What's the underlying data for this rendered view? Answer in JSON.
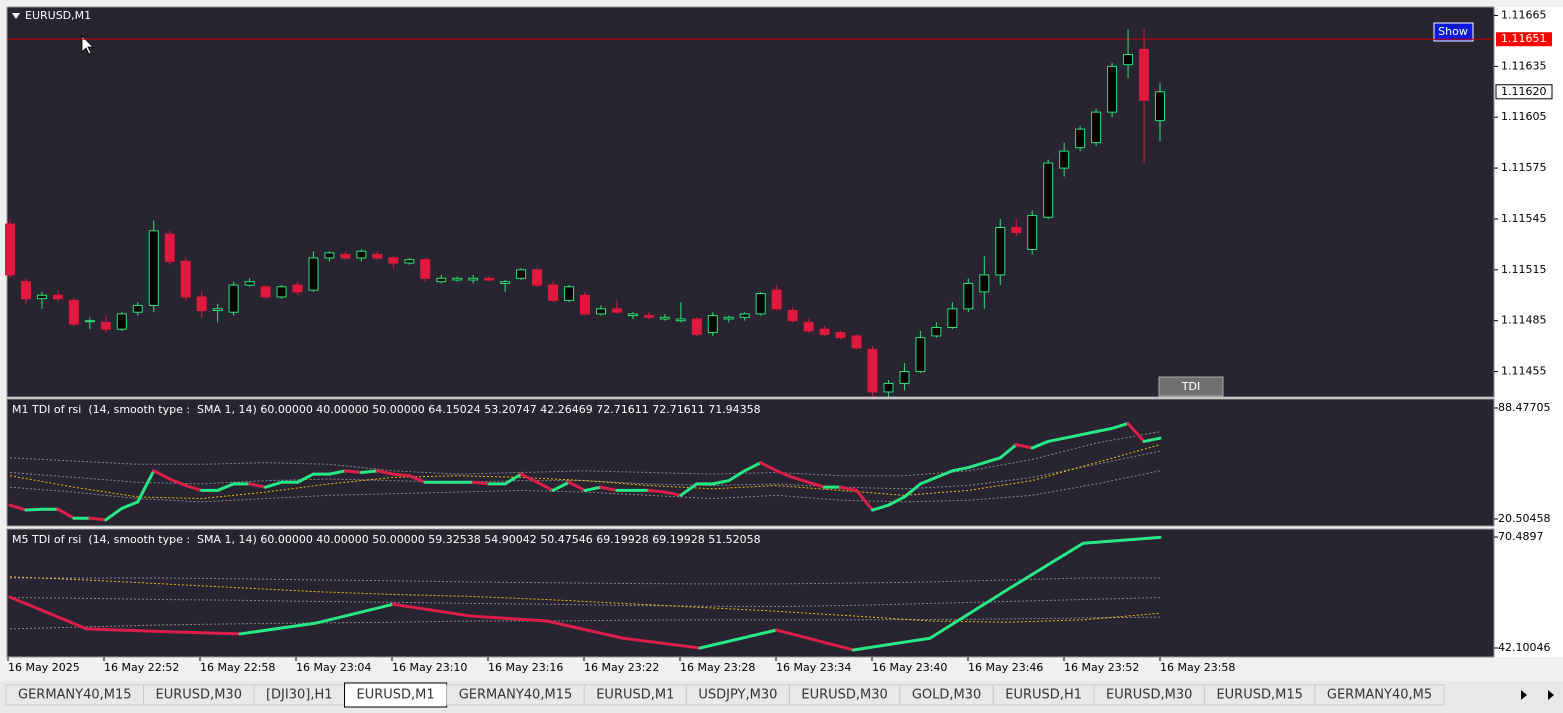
{
  "symbol": "EURUSD,M1",
  "buttons": {
    "show": "Show",
    "tdi": "TDI"
  },
  "price_chart": {
    "ylim": [
      1.1144,
      1.1167
    ],
    "yticks": [
      1.11665,
      1.11635,
      1.11605,
      1.11575,
      1.11545,
      1.11515,
      1.11485,
      1.11455
    ],
    "alert_line": 1.11651,
    "current_price": {
      "value": 1.1162,
      "label": "1.11620"
    },
    "bull_color": "#2ee07a",
    "bear_color": "#e0193f",
    "candles": [
      {
        "open": 1.11542,
        "high": 1.11545,
        "low": 1.1151,
        "close": 1.11512
      },
      {
        "open": 1.11508,
        "high": 1.1151,
        "low": 1.11495,
        "close": 1.11498
      },
      {
        "open": 1.11498,
        "high": 1.11502,
        "low": 1.11492,
        "close": 1.115
      },
      {
        "open": 1.115,
        "high": 1.11503,
        "low": 1.11496,
        "close": 1.11498
      },
      {
        "open": 1.11497,
        "high": 1.11498,
        "low": 1.11482,
        "close": 1.11483
      },
      {
        "open": 1.11485,
        "high": 1.11487,
        "low": 1.1148,
        "close": 1.11485
      },
      {
        "open": 1.11484,
        "high": 1.11488,
        "low": 1.11478,
        "close": 1.1148
      },
      {
        "open": 1.1148,
        "high": 1.1149,
        "low": 1.11479,
        "close": 1.11489
      },
      {
        "open": 1.1149,
        "high": 1.11496,
        "low": 1.11488,
        "close": 1.11494
      },
      {
        "open": 1.11494,
        "high": 1.11544,
        "low": 1.1149,
        "close": 1.11538
      },
      {
        "open": 1.11536,
        "high": 1.11538,
        "low": 1.11518,
        "close": 1.1152
      },
      {
        "open": 1.1152,
        "high": 1.11522,
        "low": 1.11497,
        "close": 1.11499
      },
      {
        "open": 1.11499,
        "high": 1.11502,
        "low": 1.11487,
        "close": 1.11491
      },
      {
        "open": 1.11491,
        "high": 1.11495,
        "low": 1.11484,
        "close": 1.11492
      },
      {
        "open": 1.1149,
        "high": 1.11508,
        "low": 1.11488,
        "close": 1.11506
      },
      {
        "open": 1.11506,
        "high": 1.1151,
        "low": 1.11505,
        "close": 1.11508
      },
      {
        "open": 1.11505,
        "high": 1.11506,
        "low": 1.11498,
        "close": 1.11499
      },
      {
        "open": 1.11499,
        "high": 1.11506,
        "low": 1.11498,
        "close": 1.11505
      },
      {
        "open": 1.11506,
        "high": 1.11508,
        "low": 1.115,
        "close": 1.11502
      },
      {
        "open": 1.11503,
        "high": 1.11526,
        "low": 1.11502,
        "close": 1.11522
      },
      {
        "open": 1.11522,
        "high": 1.11526,
        "low": 1.1152,
        "close": 1.11525
      },
      {
        "open": 1.11524,
        "high": 1.11526,
        "low": 1.11521,
        "close": 1.11522
      },
      {
        "open": 1.11522,
        "high": 1.11527,
        "low": 1.1152,
        "close": 1.11526
      },
      {
        "open": 1.11524,
        "high": 1.11526,
        "low": 1.11521,
        "close": 1.11522
      },
      {
        "open": 1.11522,
        "high": 1.11523,
        "low": 1.11516,
        "close": 1.11519
      },
      {
        "open": 1.11519,
        "high": 1.11522,
        "low": 1.11518,
        "close": 1.11521
      },
      {
        "open": 1.11521,
        "high": 1.11522,
        "low": 1.11508,
        "close": 1.1151
      },
      {
        "open": 1.11508,
        "high": 1.11512,
        "low": 1.11507,
        "close": 1.1151
      },
      {
        "open": 1.11509,
        "high": 1.11511,
        "low": 1.11508,
        "close": 1.1151
      },
      {
        "open": 1.11509,
        "high": 1.11512,
        "low": 1.11507,
        "close": 1.1151
      },
      {
        "open": 1.1151,
        "high": 1.11511,
        "low": 1.11508,
        "close": 1.11509
      },
      {
        "open": 1.11507,
        "high": 1.11509,
        "low": 1.11502,
        "close": 1.11508
      },
      {
        "open": 1.1151,
        "high": 1.11516,
        "low": 1.11509,
        "close": 1.11515
      },
      {
        "open": 1.11515,
        "high": 1.11516,
        "low": 1.11505,
        "close": 1.11506
      },
      {
        "open": 1.11506,
        "high": 1.11508,
        "low": 1.11496,
        "close": 1.11497
      },
      {
        "open": 1.11497,
        "high": 1.11506,
        "low": 1.11496,
        "close": 1.11505
      },
      {
        "open": 1.115,
        "high": 1.11502,
        "low": 1.11488,
        "close": 1.11489
      },
      {
        "open": 1.11489,
        "high": 1.11494,
        "low": 1.11488,
        "close": 1.11492
      },
      {
        "open": 1.11492,
        "high": 1.11497,
        "low": 1.11489,
        "close": 1.1149
      },
      {
        "open": 1.11488,
        "high": 1.1149,
        "low": 1.11486,
        "close": 1.11489
      },
      {
        "open": 1.11488,
        "high": 1.1149,
        "low": 1.11486,
        "close": 1.11487
      },
      {
        "open": 1.11486,
        "high": 1.11489,
        "low": 1.11485,
        "close": 1.11487
      },
      {
        "open": 1.11485,
        "high": 1.11496,
        "low": 1.11484,
        "close": 1.11486
      },
      {
        "open": 1.11486,
        "high": 1.11487,
        "low": 1.11476,
        "close": 1.11477
      },
      {
        "open": 1.11478,
        "high": 1.1149,
        "low": 1.11476,
        "close": 1.11488
      },
      {
        "open": 1.11486,
        "high": 1.11488,
        "low": 1.11484,
        "close": 1.11487
      },
      {
        "open": 1.11487,
        "high": 1.1149,
        "low": 1.11485,
        "close": 1.11489
      },
      {
        "open": 1.11489,
        "high": 1.11502,
        "low": 1.11488,
        "close": 1.11501
      },
      {
        "open": 1.11503,
        "high": 1.11506,
        "low": 1.11491,
        "close": 1.11492
      },
      {
        "open": 1.11491,
        "high": 1.11493,
        "low": 1.11484,
        "close": 1.11485
      },
      {
        "open": 1.11484,
        "high": 1.11486,
        "low": 1.11478,
        "close": 1.11479
      },
      {
        "open": 1.1148,
        "high": 1.11482,
        "low": 1.11476,
        "close": 1.11477
      },
      {
        "open": 1.11478,
        "high": 1.11479,
        "low": 1.11474,
        "close": 1.11475
      },
      {
        "open": 1.11476,
        "high": 1.11477,
        "low": 1.11468,
        "close": 1.11469
      },
      {
        "open": 1.11468,
        "high": 1.1147,
        "low": 1.1144,
        "close": 1.11443
      },
      {
        "open": 1.11443,
        "high": 1.1145,
        "low": 1.1144,
        "close": 1.11448
      },
      {
        "open": 1.11448,
        "high": 1.1146,
        "low": 1.11444,
        "close": 1.11455
      },
      {
        "open": 1.11455,
        "high": 1.11479,
        "low": 1.11454,
        "close": 1.11475
      },
      {
        "open": 1.11476,
        "high": 1.11484,
        "low": 1.11475,
        "close": 1.11481
      },
      {
        "open": 1.11481,
        "high": 1.11496,
        "low": 1.1148,
        "close": 1.11492
      },
      {
        "open": 1.11492,
        "high": 1.1151,
        "low": 1.1149,
        "close": 1.11507
      },
      {
        "open": 1.11502,
        "high": 1.11523,
        "low": 1.11492,
        "close": 1.11512
      },
      {
        "open": 1.11512,
        "high": 1.11545,
        "low": 1.11506,
        "close": 1.1154
      },
      {
        "open": 1.1154,
        "high": 1.11545,
        "low": 1.11535,
        "close": 1.11537
      },
      {
        "open": 1.11527,
        "high": 1.1155,
        "low": 1.11524,
        "close": 1.11547
      },
      {
        "open": 1.11546,
        "high": 1.1158,
        "low": 1.11545,
        "close": 1.11578
      },
      {
        "open": 1.11575,
        "high": 1.1159,
        "low": 1.1157,
        "close": 1.11585
      },
      {
        "open": 1.11587,
        "high": 1.116,
        "low": 1.11585,
        "close": 1.11598
      },
      {
        "open": 1.1159,
        "high": 1.1161,
        "low": 1.11588,
        "close": 1.11608
      },
      {
        "open": 1.11608,
        "high": 1.11637,
        "low": 1.11605,
        "close": 1.11635
      },
      {
        "open": 1.11636,
        "high": 1.11657,
        "low": 1.11628,
        "close": 1.11642
      },
      {
        "open": 1.11645,
        "high": 1.11657,
        "low": 1.11578,
        "close": 1.11615
      },
      {
        "open": 1.11603,
        "high": 1.11625,
        "low": 1.11591,
        "close": 1.1162
      }
    ]
  },
  "panes": [
    {
      "label": "M1 TDI of rsi  (14, smooth type :  SMA 1, 14) 60.00000 40.00000 50.00000 64.15024 53.20747 42.26469 72.71611 72.71611 71.94358",
      "ylim": [
        20.50458,
        88.47705
      ],
      "yticks": [
        88.47705,
        20.50458
      ],
      "up_color": "#27e884",
      "down_color": "#dc1e4a",
      "price_line": [
        29,
        26,
        26.5,
        26.5,
        21,
        21,
        20,
        27,
        31,
        50,
        45,
        41,
        38,
        38,
        42,
        42,
        40,
        43,
        43,
        48,
        48,
        50,
        49,
        50,
        48,
        47,
        43,
        43,
        43,
        43,
        42,
        42,
        48,
        43,
        38,
        43,
        38,
        40,
        38,
        38,
        38,
        37,
        35,
        42,
        42,
        44,
        50,
        55,
        50,
        46,
        43,
        40,
        40,
        38,
        26,
        29,
        34,
        42,
        46,
        50,
        52,
        55,
        58,
        66,
        64,
        68,
        70,
        72,
        74,
        76,
        79,
        68,
        70
      ],
      "signal_line": [
        47,
        40,
        34,
        33,
        37,
        42,
        46,
        47,
        46,
        44,
        41,
        39,
        41,
        38,
        35,
        38,
        44,
        55,
        66
      ],
      "upper_band": [
        58,
        56,
        54,
        54,
        55,
        54,
        50,
        48,
        49,
        50,
        49,
        48,
        49,
        47,
        47,
        50,
        57,
        67,
        74
      ],
      "middle_band": [
        49,
        46,
        43,
        42,
        44,
        45,
        44,
        43,
        44,
        44,
        42,
        41,
        42,
        40,
        39,
        41,
        46,
        54,
        62
      ],
      "lower_band": [
        40,
        37,
        33,
        31,
        33,
        35,
        36,
        37,
        38,
        37,
        35,
        33,
        35,
        32,
        31,
        32,
        35,
        42,
        50
      ]
    },
    {
      "label": "M5 TDI of rsi  (14, smooth type :  SMA 1, 14) 60.00000 40.00000 50.00000 59.32538 54.90042 50.47546 69.19928 69.19928 51.52058",
      "ylim": [
        42.10046,
        70.4897
      ],
      "yticks": [
        70.4897,
        42.10046
      ],
      "up_color": "#27e884",
      "down_color": "#dc1e4a",
      "price_line": [
        55.1,
        47,
        46.3,
        45.7,
        48.5,
        53.3,
        50.3,
        49,
        44.6,
        42.1,
        46.7,
        41.6,
        44.6,
        56.9,
        68.9,
        70.4
      ],
      "signal_line": [
        60.3,
        59.5,
        58.5,
        57.5,
        56.5,
        55.8,
        55.3,
        54.5,
        53.5,
        52.5,
        51.5,
        50.3,
        49,
        48.7,
        49.3,
        51
      ],
      "upper_band": [
        60,
        60,
        60,
        59.8,
        59.5,
        59.3,
        59,
        58.8,
        58.6,
        58.5,
        58.5,
        58.7,
        59,
        59.5,
        60,
        60
      ],
      "middle_band": [
        55,
        54.8,
        54.5,
        54.3,
        54,
        53.8,
        53.5,
        53.3,
        53,
        52.8,
        52.7,
        53,
        53.5,
        54,
        54.5,
        55
      ],
      "lower_band": [
        47,
        47.5,
        48,
        48.3,
        48.5,
        48.7,
        49,
        49,
        49.2,
        49.3,
        49.3,
        49.3,
        49.4,
        49.5,
        49.8,
        50
      ]
    }
  ],
  "time_axis": [
    "16 May 2025",
    "16 May 22:52",
    "16 May 22:58",
    "16 May 23:04",
    "16 May 23:10",
    "16 May 23:16",
    "16 May 23:22",
    "16 May 23:28",
    "16 May 23:34",
    "16 May 23:40",
    "16 May 23:46",
    "16 May 23:52",
    "16 May 23:58"
  ],
  "tabs": [
    "GERMANY40,M15",
    "EURUSD,M30",
    "[DJI30],H1",
    "EURUSD,M1",
    "GERMANY40,M15",
    "EURUSD,M1",
    "USDJPY,M30",
    "EURUSD,M30",
    "GOLD,M30",
    "EURUSD,H1",
    "EURUSD,M30",
    "EURUSD,M15",
    "GERMANY40,M5"
  ],
  "active_tab": 3
}
